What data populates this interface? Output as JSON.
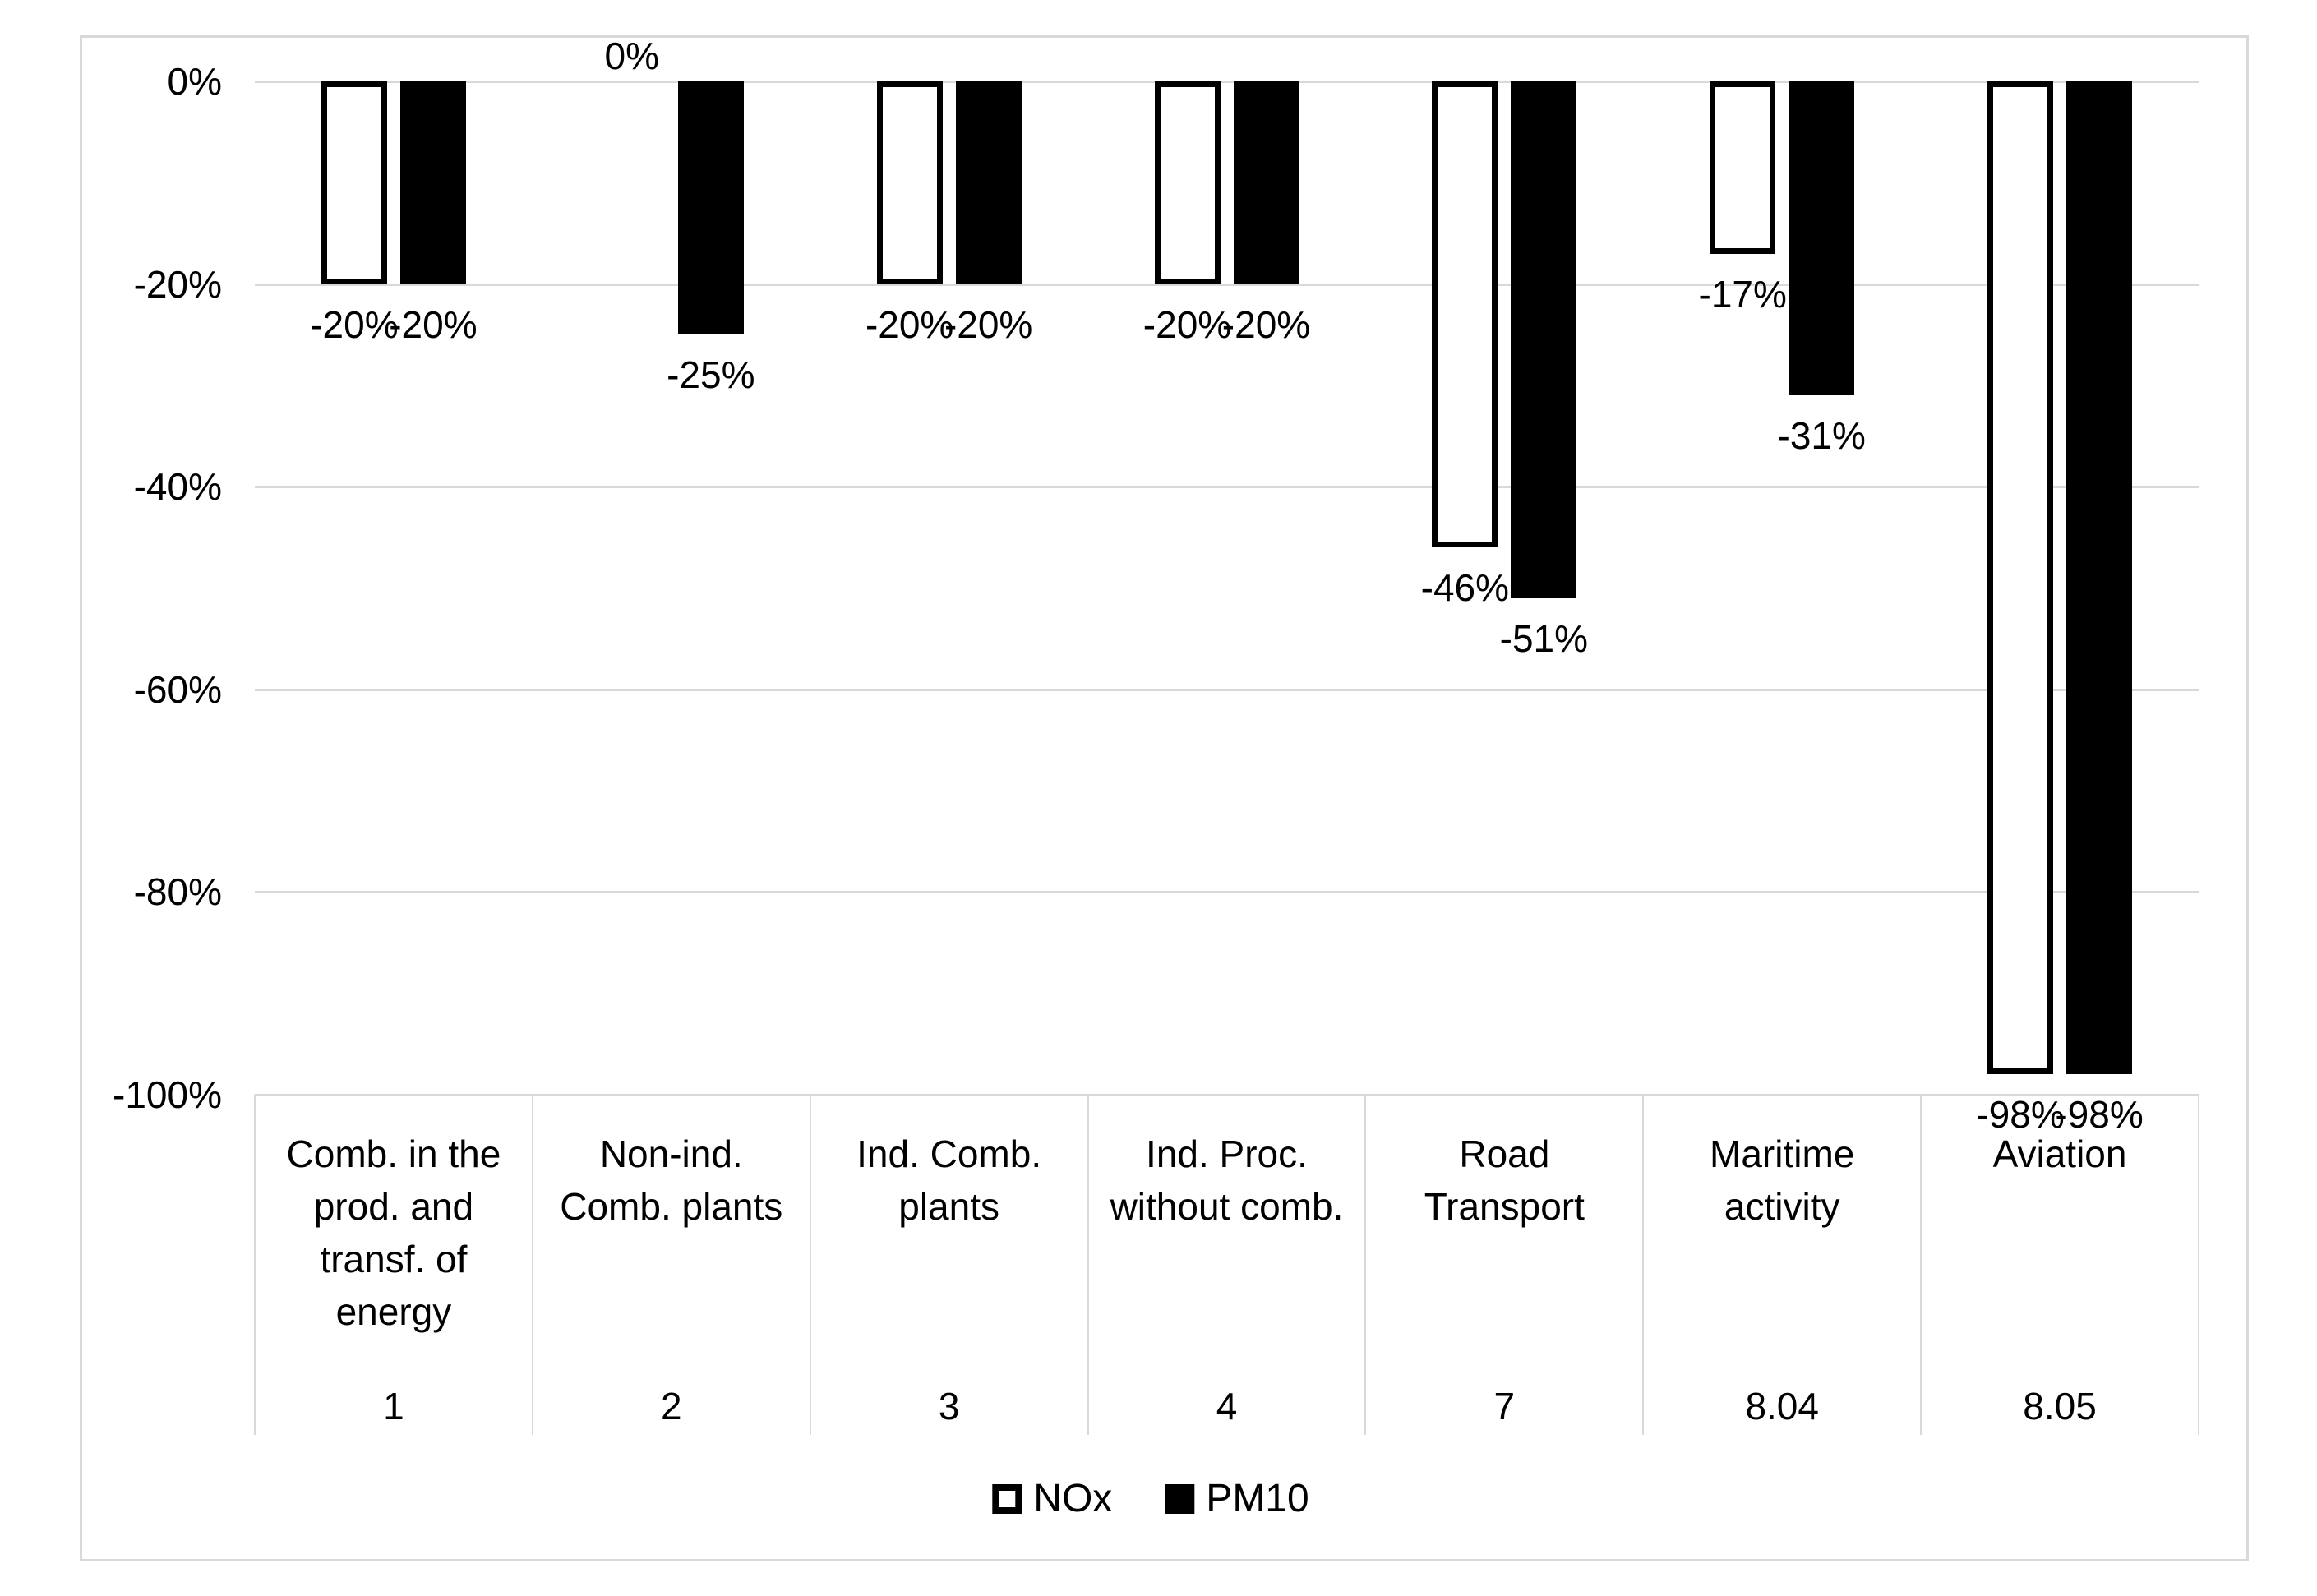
{
  "figure": {
    "background": "#ffffff",
    "border_color": "#d9d9d9"
  },
  "legend": {
    "items": [
      {
        "label": "NOx",
        "swatch": "outline"
      },
      {
        "label": "PM10",
        "swatch": "filled"
      }
    ]
  },
  "chart_data": {
    "type": "bar",
    "orientation": "vertical",
    "title": "",
    "xlabel": "",
    "ylabel": "",
    "ylim": [
      -100,
      0
    ],
    "grid": true,
    "gridline_color": "#d9d9d9",
    "text_color": "#000000",
    "legend_position": "bottom",
    "yticks": [
      {
        "label": "0%",
        "value": 0
      },
      {
        "label": "-20%",
        "value": -20
      },
      {
        "label": "-40%",
        "value": -40
      },
      {
        "label": "-60%",
        "value": -60
      },
      {
        "label": "-80%",
        "value": -80
      },
      {
        "label": "-100%",
        "value": -100
      }
    ],
    "categories": [
      {
        "lines": [
          "Comb. in the",
          "prod. and",
          "transf. of",
          "energy"
        ],
        "code": "1"
      },
      {
        "lines": [
          "Non-ind.",
          "Comb. plants"
        ],
        "code": "2"
      },
      {
        "lines": [
          "Ind. Comb.",
          "plants"
        ],
        "code": "3"
      },
      {
        "lines": [
          "Ind. Proc.",
          "without comb."
        ],
        "code": "4"
      },
      {
        "lines": [
          "Road",
          "Transport"
        ],
        "code": "7"
      },
      {
        "lines": [
          "Maritime",
          "activity"
        ],
        "code": "8.04"
      },
      {
        "lines": [
          "Aviation"
        ],
        "code": "8.05"
      }
    ],
    "series": [
      {
        "name": "NOx",
        "fill": "#ffffff",
        "border": "#000000",
        "values": [
          -20,
          0,
          -20,
          -20,
          -46,
          -17,
          -98
        ],
        "labels": [
          "-20%",
          "0%",
          "-20%",
          "-20%",
          "-46%",
          "-17%",
          "-98%"
        ]
      },
      {
        "name": "PM10",
        "fill": "#000000",
        "border": "#000000",
        "values": [
          -20,
          -25,
          -20,
          -20,
          -51,
          -31,
          -98
        ],
        "labels": [
          "-20%",
          "-25%",
          "-20%",
          "-20%",
          "-51%",
          "-31%",
          "-98%"
        ]
      }
    ]
  }
}
